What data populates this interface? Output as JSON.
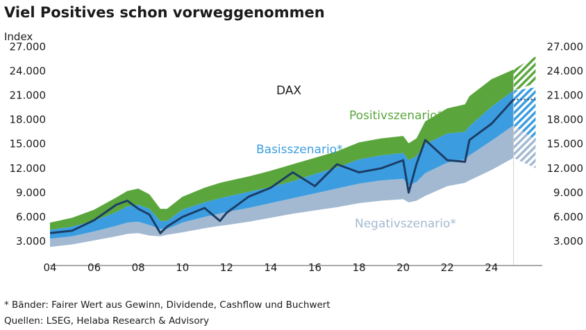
{
  "chart_data": {
    "type": "area",
    "title": "Viel Positives schon vorweggenommen",
    "subtitle": "Index",
    "series_label": "DAX",
    "annotations": {
      "positive": "Positivszenario*",
      "base": "Basisszenario*",
      "negative": "Negativszenario*"
    },
    "footnotes": [
      "* Bänder: Fairer Wert aus Gewinn, Dividende, Cashflow und Buchwert",
      "Quellen: LSEG, Helaba Research & Advisory"
    ],
    "y_ticks": [
      3000,
      6000,
      9000,
      12000,
      15000,
      18000,
      21000,
      24000,
      27000
    ],
    "y_tick_labels": [
      "3.000",
      "6.000",
      "9.000",
      "12.000",
      "15.000",
      "18.000",
      "21.000",
      "24.000",
      "27.000"
    ],
    "ylim": [
      0,
      28500
    ],
    "x_ticks": [
      2004,
      2006,
      2008,
      2010,
      2012,
      2014,
      2016,
      2018,
      2020,
      2022,
      2024
    ],
    "x_tick_labels": [
      "04",
      "06",
      "08",
      "10",
      "12",
      "14",
      "16",
      "18",
      "20",
      "22",
      "24"
    ],
    "xlim": [
      2004,
      2026.3
    ],
    "colors": {
      "positive": "#5aa63c",
      "base": "#3b9de0",
      "negative": "#a2b9d1",
      "dax": "#1b3d66",
      "positive_text": "#5aa63c",
      "base_text": "#3b9de0",
      "negative_text": "#a2b9d1"
    },
    "x": [
      2004.0,
      2005.0,
      2006.0,
      2007.0,
      2007.5,
      2008.0,
      2008.5,
      2009.0,
      2009.3,
      2010.0,
      2011.0,
      2011.7,
      2012.0,
      2013.0,
      2014.0,
      2015.0,
      2016.0,
      2017.0,
      2018.0,
      2019.0,
      2020.0,
      2020.25,
      2020.6,
      2021.0,
      2022.0,
      2022.8,
      2023.0,
      2024.0,
      2025.0
    ],
    "negative_band_lower": [
      2300,
      2600,
      3100,
      3600,
      3900,
      4000,
      3700,
      3600,
      3800,
      4100,
      4600,
      4900,
      5000,
      5400,
      5900,
      6400,
      6800,
      7200,
      7700,
      8000,
      8200,
      7800,
      8000,
      8600,
      9800,
      10200,
      10500,
      11800,
      13300
    ],
    "negative_band_upper": [
      3300,
      3600,
      4200,
      4900,
      5300,
      5400,
      5000,
      4500,
      4500,
      5300,
      6000,
      6400,
      6600,
      7100,
      7700,
      8300,
      8900,
      9500,
      10100,
      10500,
      10700,
      9900,
      10300,
      11400,
      12700,
      13100,
      13600,
      15400,
      17300
    ],
    "base_band_upper": [
      4400,
      4800,
      5500,
      6600,
      7300,
      7500,
      7000,
      5500,
      5500,
      6900,
      7800,
      8300,
      8500,
      9100,
      9700,
      10400,
      11300,
      12100,
      13100,
      13600,
      13900,
      13000,
      13500,
      15000,
      16300,
      16500,
      17200,
      19600,
      21600
    ],
    "positive_band_upper": [
      5300,
      5900,
      6900,
      8400,
      9200,
      9500,
      8800,
      7000,
      7000,
      8500,
      9600,
      10200,
      10400,
      11000,
      11700,
      12500,
      13300,
      14100,
      15200,
      15700,
      16000,
      15100,
      15700,
      17800,
      19400,
      19900,
      20900,
      23000,
      24200
    ],
    "dax": [
      4000,
      4300,
      5600,
      7500,
      8000,
      7000,
      6300,
      4000,
      4800,
      6000,
      7100,
      5500,
      6500,
      8500,
      9600,
      11500,
      9800,
      12500,
      11500,
      12000,
      13000,
      9000,
      12500,
      15500,
      13000,
      12800,
      15500,
      17500,
      20500
    ],
    "projection": {
      "x_start": 2025.0,
      "x_end": 2026.0,
      "positive": [
        [
          21600,
          24200
        ],
        [
          22500,
          25800
        ]
      ],
      "base": [
        [
          17300,
          21600
        ],
        [
          15500,
          22000
        ]
      ],
      "negative": [
        [
          13300,
          17300
        ],
        [
          12000,
          15500
        ]
      ],
      "dax_dotted": [
        20500,
        20500
      ]
    }
  }
}
